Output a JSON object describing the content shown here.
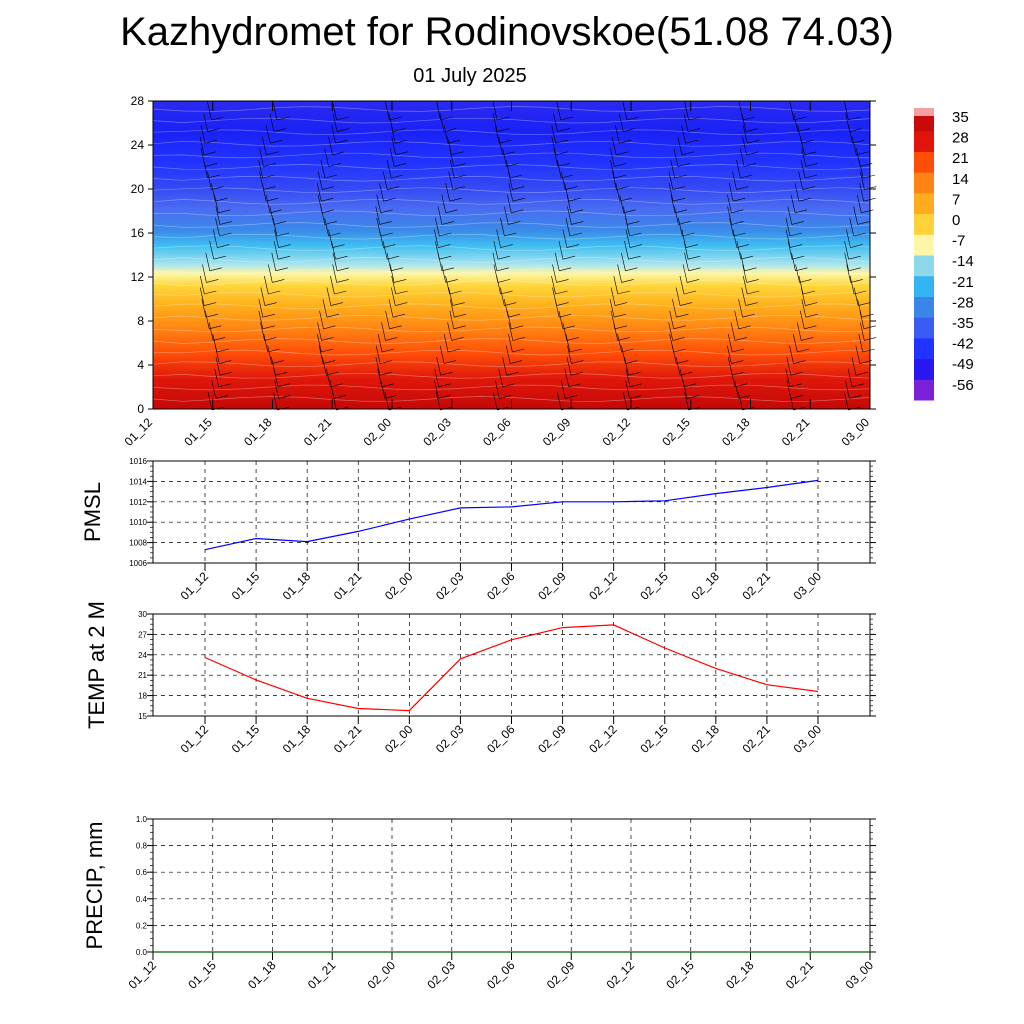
{
  "header": {
    "title": "Kazhydromet for Rodinovskoe(51.08 74.03)",
    "subtitle": "01 July 2025"
  },
  "chart_data": [
    {
      "type": "heatmap",
      "description_scope": "vertical cross-section",
      "x_categories": [
        "01_12",
        "01_15",
        "01_18",
        "01_21",
        "02_00",
        "02_03",
        "02_06",
        "02_09",
        "02_12",
        "02_15",
        "02_18",
        "02_21",
        "03_00"
      ],
      "yticks": [
        0,
        4,
        8,
        12,
        16,
        20,
        24,
        28
      ],
      "ylim": [
        0,
        28
      ],
      "colorbar": {
        "labels": [
          "35",
          "28",
          "21",
          "14",
          "7",
          "0",
          "-7",
          "-14",
          "-21",
          "-28",
          "-35",
          "-42",
          "-49",
          "-56"
        ],
        "colors": [
          "#7a20d8",
          "#2a16ee",
          "#2233ff",
          "#3a5cf2",
          "#3a86e8",
          "#34b4f0",
          "#8fd8ec",
          "#fdf6a8",
          "#ffd23c",
          "#ffac1e",
          "#ff8414",
          "#ff4e08",
          "#e0140a",
          "#c80a0a"
        ]
      }
    },
    {
      "type": "line",
      "ylabel": "PMSL",
      "x": [
        "01_12",
        "01_15",
        "01_18",
        "01_21",
        "02_00",
        "02_03",
        "02_06",
        "02_09",
        "02_12",
        "02_15",
        "02_18",
        "02_21",
        "03_00"
      ],
      "values": [
        1007.3,
        1008.4,
        1008.1,
        1009.1,
        1010.3,
        1011.4,
        1011.5,
        1012.0,
        1012.0,
        1012.1,
        1012.8,
        1013.4,
        1014.1
      ],
      "ylim": [
        1006,
        1016
      ],
      "yticks": [
        1006,
        1008,
        1010,
        1012,
        1014,
        1016
      ],
      "color": "#0000ff",
      "grid": true
    },
    {
      "type": "line",
      "ylabel": "TEMP at 2 M",
      "x": [
        "01_12",
        "01_15",
        "01_18",
        "01_21",
        "02_00",
        "02_03",
        "02_06",
        "02_09",
        "02_12",
        "02_15",
        "02_18",
        "02_21",
        "03_00"
      ],
      "values": [
        23.6,
        20.3,
        17.6,
        16.1,
        15.8,
        23.4,
        26.2,
        28.0,
        28.4,
        25.0,
        22.0,
        19.6,
        18.6
      ],
      "ylim": [
        15,
        30
      ],
      "yticks": [
        15,
        18,
        21,
        24,
        27,
        30
      ],
      "color": "#ff0000",
      "grid": true
    },
    {
      "type": "line",
      "ylabel": "PRECIP, mm",
      "x": [
        "01_12",
        "01_15",
        "01_18",
        "01_21",
        "02_00",
        "02_03",
        "02_06",
        "02_09",
        "02_12",
        "02_15",
        "02_18",
        "02_21",
        "03_00"
      ],
      "values": [
        0,
        0,
        0,
        0,
        0,
        0,
        0,
        0,
        0,
        0,
        0,
        0,
        0
      ],
      "ylim": [
        0.0,
        1.0
      ],
      "yticks": [
        "0.0",
        "0.2",
        "0.4",
        "0.6",
        "0.8",
        "1.0"
      ],
      "color": "#006400",
      "grid": true
    }
  ]
}
